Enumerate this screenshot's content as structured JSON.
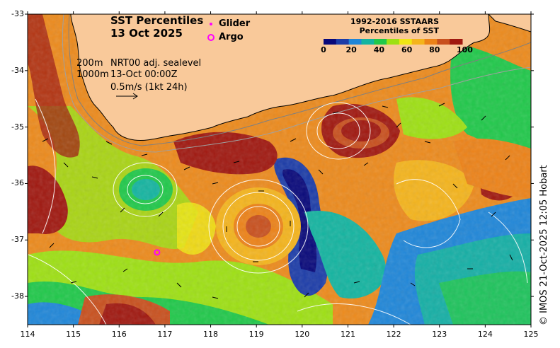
{
  "title": {
    "line1": "SST Percentiles",
    "line2": "13 Oct 2025"
  },
  "markers": {
    "glider_label": "Glider",
    "argo_label": "Argo",
    "marker_color": "#ff00ff"
  },
  "info": {
    "depth_200": "200m",
    "depth_1000": "1000m",
    "sealevel": "NRT00 adj. sealevel",
    "datetime": "13-Oct 00:00Z",
    "scale": "0.5m/s (1kt 24h)"
  },
  "colorbar": {
    "title_line1": "1992-2016 SSTAARS",
    "title_line2": "Percentiles of SST",
    "ticks": [
      "0",
      "20",
      "40",
      "60",
      "80",
      "100"
    ],
    "colors": [
      "#08087a",
      "#1c3ca8",
      "#1f86d8",
      "#14b4a0",
      "#20c84a",
      "#9ee014",
      "#f0e614",
      "#f4b41c",
      "#ec8218",
      "#c8501e",
      "#a01810"
    ]
  },
  "land_color": "#f9c99a",
  "axes": {
    "x_ticks": [
      "114",
      "115",
      "116",
      "117",
      "118",
      "119",
      "120",
      "121",
      "122",
      "123",
      "124",
      "125"
    ],
    "y_ticks": [
      "-33",
      "-34",
      "-35",
      "-36",
      "-37",
      "-38"
    ]
  },
  "argo_float": {
    "lon": 116.83,
    "lat": -37.22
  },
  "credit": "© IMOS 21-Oct-2025 12:05 Hobart"
}
